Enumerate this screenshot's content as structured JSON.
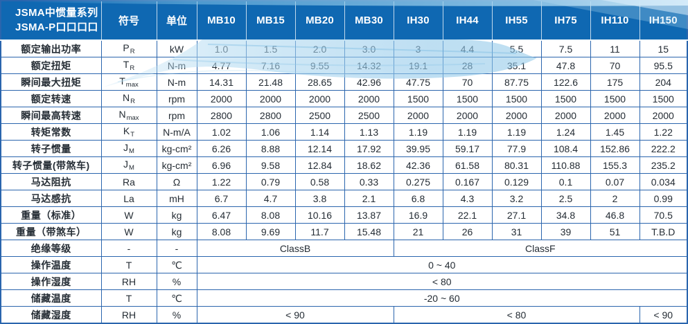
{
  "colors": {
    "header_bg": "#0f68b2",
    "grid_border": "#2a65ad",
    "header_divider": "#ffffff",
    "wave_light": "#9fd0ec",
    "wave_pale": "#d7ecf9",
    "text": "#242c34"
  },
  "header": {
    "title_line1": "JSMA中惯量系列",
    "title_line2": "JSMA-P口口口口",
    "symbol_col": "符号",
    "unit_col": "单位",
    "models": [
      "MB10",
      "MB15",
      "MB20",
      "MB30",
      "IH30",
      "IH44",
      "IH55",
      "IH75",
      "IH110",
      "IH150"
    ]
  },
  "rows": [
    {
      "label": "额定输出功率",
      "symbol": {
        "base": "P",
        "sub": "R"
      },
      "unit": "kW",
      "cells": [
        {
          "text": "1.0"
        },
        {
          "text": "1.5"
        },
        {
          "text": "2.0"
        },
        {
          "text": "3.0"
        },
        {
          "text": "3"
        },
        {
          "text": "4.4"
        },
        {
          "text": "5.5"
        },
        {
          "text": "7.5"
        },
        {
          "text": "11"
        },
        {
          "text": "15"
        }
      ]
    },
    {
      "label": "额定扭矩",
      "symbol": {
        "base": "T",
        "sub": "R"
      },
      "unit": "N-m",
      "cells": [
        {
          "text": "4.77"
        },
        {
          "text": "7.16"
        },
        {
          "text": "9.55"
        },
        {
          "text": "14.32"
        },
        {
          "text": "19.1"
        },
        {
          "text": "28"
        },
        {
          "text": "35.1"
        },
        {
          "text": "47.8"
        },
        {
          "text": "70"
        },
        {
          "text": "95.5"
        }
      ]
    },
    {
      "label": "瞬间最大扭矩",
      "symbol": {
        "base": "T",
        "sub": "max"
      },
      "unit": "N-m",
      "cells": [
        {
          "text": "14.31"
        },
        {
          "text": "21.48"
        },
        {
          "text": "28.65"
        },
        {
          "text": "42.96"
        },
        {
          "text": "47.75"
        },
        {
          "text": "70"
        },
        {
          "text": "87.75"
        },
        {
          "text": "122.6"
        },
        {
          "text": "175"
        },
        {
          "text": "204"
        }
      ]
    },
    {
      "label": "额定转速",
      "symbol": {
        "base": "N",
        "sub": "R"
      },
      "unit": "rpm",
      "cells": [
        {
          "text": "2000"
        },
        {
          "text": "2000"
        },
        {
          "text": "2000"
        },
        {
          "text": "2000"
        },
        {
          "text": "1500"
        },
        {
          "text": "1500"
        },
        {
          "text": "1500"
        },
        {
          "text": "1500"
        },
        {
          "text": "1500"
        },
        {
          "text": "1500"
        }
      ]
    },
    {
      "label": "瞬间最高转速",
      "symbol": {
        "base": "N",
        "sub": "max"
      },
      "unit": "rpm",
      "cells": [
        {
          "text": "2800"
        },
        {
          "text": "2800"
        },
        {
          "text": "2500"
        },
        {
          "text": "2500"
        },
        {
          "text": "2000"
        },
        {
          "text": "2000"
        },
        {
          "text": "2000"
        },
        {
          "text": "2000"
        },
        {
          "text": "2000"
        },
        {
          "text": "2000"
        }
      ]
    },
    {
      "label": "转矩常数",
      "symbol": {
        "base": "K",
        "sub": "T"
      },
      "unit": "N-m/A",
      "cells": [
        {
          "text": "1.02"
        },
        {
          "text": "1.06"
        },
        {
          "text": "1.14"
        },
        {
          "text": "1.13"
        },
        {
          "text": "1.19"
        },
        {
          "text": "1.19"
        },
        {
          "text": "1.19"
        },
        {
          "text": "1.24"
        },
        {
          "text": "1.45"
        },
        {
          "text": "1.22"
        }
      ]
    },
    {
      "label": "转子惯量",
      "symbol": {
        "base": "J",
        "sub": "M"
      },
      "unit": "kg-cm²",
      "cells": [
        {
          "text": "6.26"
        },
        {
          "text": "8.88"
        },
        {
          "text": "12.14"
        },
        {
          "text": "17.92"
        },
        {
          "text": "39.95"
        },
        {
          "text": "59.17"
        },
        {
          "text": "77.9"
        },
        {
          "text": "108.4"
        },
        {
          "text": "152.86"
        },
        {
          "text": "222.2"
        }
      ]
    },
    {
      "label": "转子惯量(带煞车)",
      "symbol": {
        "base": "J",
        "sub": "M"
      },
      "unit": "kg-cm²",
      "cells": [
        {
          "text": "6.96"
        },
        {
          "text": "9.58"
        },
        {
          "text": "12.84"
        },
        {
          "text": "18.62"
        },
        {
          "text": "42.36"
        },
        {
          "text": "61.58"
        },
        {
          "text": "80.31"
        },
        {
          "text": "110.88"
        },
        {
          "text": "155.3"
        },
        {
          "text": "235.2"
        }
      ]
    },
    {
      "label": "马达阻抗",
      "symbol": {
        "base": "Ra",
        "sub": ""
      },
      "unit": "Ω",
      "cells": [
        {
          "text": "1.22"
        },
        {
          "text": "0.79"
        },
        {
          "text": "0.58"
        },
        {
          "text": "0.33"
        },
        {
          "text": "0.275"
        },
        {
          "text": "0.167"
        },
        {
          "text": "0.129"
        },
        {
          "text": "0.1"
        },
        {
          "text": "0.07"
        },
        {
          "text": "0.034"
        }
      ]
    },
    {
      "label": "马达感抗",
      "symbol": {
        "base": "La",
        "sub": ""
      },
      "unit": "mH",
      "cells": [
        {
          "text": "6.7"
        },
        {
          "text": "4.7"
        },
        {
          "text": "3.8"
        },
        {
          "text": "2.1"
        },
        {
          "text": "6.8"
        },
        {
          "text": "4.3"
        },
        {
          "text": "3.2"
        },
        {
          "text": "2.5"
        },
        {
          "text": "2"
        },
        {
          "text": "0.99"
        }
      ]
    },
    {
      "label": "重量（标准）",
      "symbol": {
        "base": "W",
        "sub": ""
      },
      "unit": "kg",
      "cells": [
        {
          "text": "6.47"
        },
        {
          "text": "8.08"
        },
        {
          "text": "10.16"
        },
        {
          "text": "13.87"
        },
        {
          "text": "16.9"
        },
        {
          "text": "22.1"
        },
        {
          "text": "27.1"
        },
        {
          "text": "34.8"
        },
        {
          "text": "46.8"
        },
        {
          "text": "70.5"
        }
      ]
    },
    {
      "label": "重量（带煞车）",
      "symbol": {
        "base": "W",
        "sub": ""
      },
      "unit": "kg",
      "cells": [
        {
          "text": "8.08"
        },
        {
          "text": "9.69"
        },
        {
          "text": "11.7"
        },
        {
          "text": "15.48"
        },
        {
          "text": "21"
        },
        {
          "text": "26"
        },
        {
          "text": "31"
        },
        {
          "text": "39"
        },
        {
          "text": "51"
        },
        {
          "text": "T.B.D"
        }
      ]
    },
    {
      "label": "绝缘等级",
      "symbol": {
        "base": "-",
        "sub": ""
      },
      "unit": "-",
      "cells": [
        {
          "text": "ClassB",
          "colspan": 4
        },
        {
          "text": "ClassF",
          "colspan": 6
        }
      ]
    },
    {
      "label": "操作温度",
      "symbol": {
        "base": "T",
        "sub": ""
      },
      "unit": "℃",
      "cells": [
        {
          "text": "0 ~ 40",
          "colspan": 10
        }
      ]
    },
    {
      "label": "操作湿度",
      "symbol": {
        "base": "RH",
        "sub": ""
      },
      "unit": "%",
      "cells": [
        {
          "text": "< 80",
          "colspan": 10
        }
      ]
    },
    {
      "label": "储藏温度",
      "symbol": {
        "base": "T",
        "sub": ""
      },
      "unit": "℃",
      "cells": [
        {
          "text": "-20 ~ 60",
          "colspan": 10
        }
      ]
    },
    {
      "label": "储藏湿度",
      "symbol": {
        "base": "RH",
        "sub": ""
      },
      "unit": "%",
      "cells": [
        {
          "text": "< 90",
          "colspan": 4
        },
        {
          "text": "< 80",
          "colspan": 5
        },
        {
          "text": "< 90",
          "colspan": 1
        }
      ]
    }
  ]
}
